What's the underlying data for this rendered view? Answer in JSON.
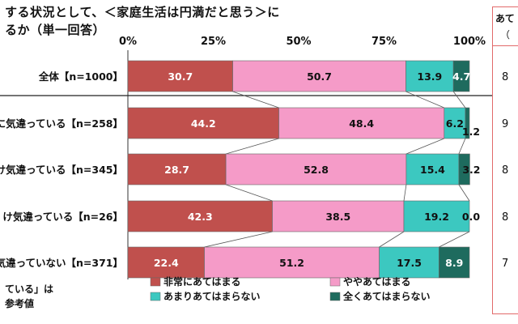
{
  "title": {
    "line1": "する状況として、＜家庭生活は円満だと思う＞に",
    "line2": "るか（単一回答）"
  },
  "side_panel": {
    "header_line1": "あて",
    "header_line2": "（",
    "values": [
      "8",
      "9",
      "8",
      "8",
      "7"
    ]
  },
  "footnote": {
    "line1": "ている」は",
    "line2": "参考値"
  },
  "chart_data": {
    "type": "bar",
    "orientation": "horizontal",
    "stacked": true,
    "percent_axis": [
      0,
      100
    ],
    "xticks": [
      "0%",
      "25%",
      "50%",
      "75%",
      "100%"
    ],
    "categories": [
      "全体【n=1000】",
      "に気違っている【n=258】",
      "け気違っている【n=345】",
      "け気違っている【n=26】",
      "気違っていない【n=371】"
    ],
    "series": [
      {
        "name": "非常にあてはまる",
        "color": "#c0504d",
        "label_color": "#ffffff",
        "values": [
          30.7,
          44.2,
          28.7,
          42.3,
          22.4
        ]
      },
      {
        "name": "ややあてはまる",
        "color": "#f59bc8",
        "label_color": "#111111",
        "values": [
          50.7,
          48.4,
          52.8,
          38.5,
          51.2
        ]
      },
      {
        "name": "あまりあてはまらない",
        "color": "#3cc8c0",
        "label_color": "#111111",
        "values": [
          13.9,
          6.2,
          15.4,
          19.2,
          17.5
        ]
      },
      {
        "name": "全くあてはまらない",
        "color": "#1e6b5e",
        "label_color": "#ffffff",
        "values": [
          4.7,
          1.2,
          3.2,
          0.0,
          8.9
        ]
      }
    ],
    "value_labels": [
      [
        "30.7",
        "50.7",
        "13.9",
        "4.7"
      ],
      [
        "44.2",
        "48.4",
        "6.2",
        "1.2"
      ],
      [
        "28.7",
        "52.8",
        "15.4",
        "3.2"
      ],
      [
        "42.3",
        "38.5",
        "19.2",
        "0.0"
      ],
      [
        "22.4",
        "51.2",
        "17.5",
        "8.9"
      ]
    ]
  }
}
